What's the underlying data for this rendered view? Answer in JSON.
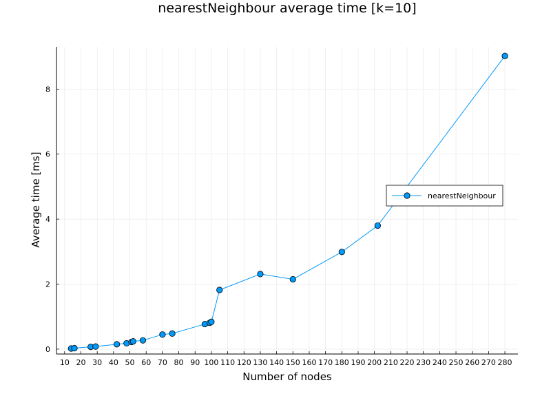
{
  "chart_data": {
    "type": "line",
    "title": "nearestNeighbour average time [k=10]",
    "xlabel": "Number of nodes",
    "ylabel": "Average time [ms]",
    "xlim": [
      5,
      288
    ],
    "ylim": [
      -0.15,
      9.3
    ],
    "xticks": [
      10,
      20,
      30,
      40,
      50,
      60,
      70,
      80,
      90,
      100,
      110,
      120,
      130,
      140,
      150,
      160,
      170,
      180,
      190,
      200,
      210,
      220,
      230,
      240,
      250,
      260,
      270,
      280
    ],
    "yticks": [
      0,
      2,
      4,
      6,
      8
    ],
    "grid": true,
    "legend_position": "right",
    "series": [
      {
        "name": "nearestNeighbour",
        "color": "#009AFA",
        "marker": "circle",
        "x": [
          14,
          16,
          26,
          29,
          42,
          48,
          51,
          52,
          58,
          70,
          76,
          96,
          99,
          100,
          105,
          130,
          150,
          180,
          202,
          280
        ],
        "y": [
          0.02,
          0.03,
          0.07,
          0.08,
          0.15,
          0.18,
          0.22,
          0.24,
          0.27,
          0.45,
          0.48,
          0.77,
          0.81,
          0.84,
          1.82,
          2.31,
          2.15,
          2.99,
          3.8,
          9.02
        ]
      }
    ]
  }
}
